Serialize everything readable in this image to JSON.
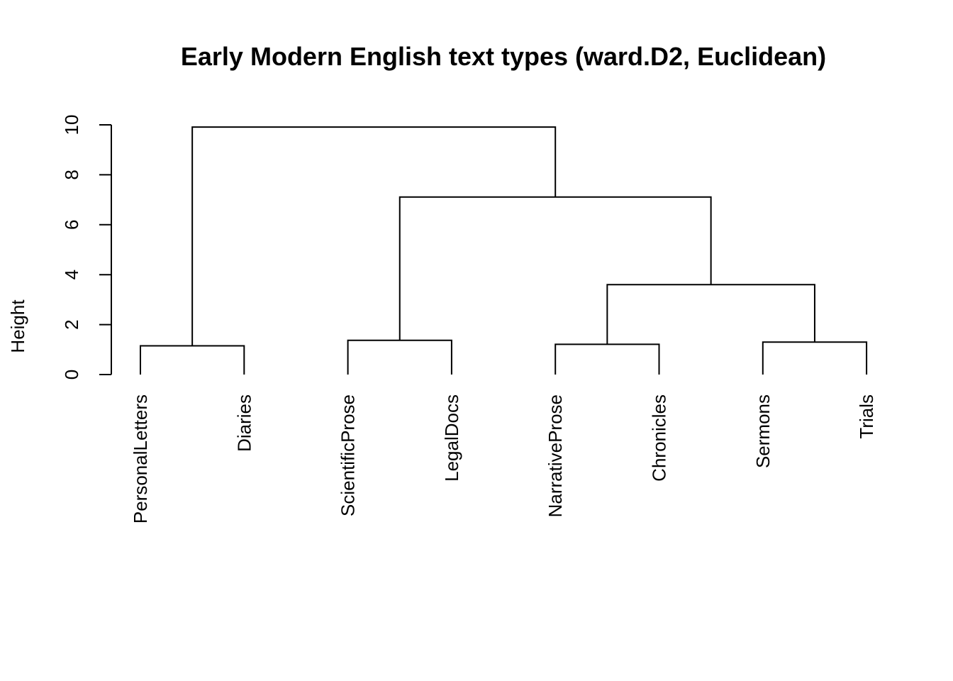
{
  "chart_data": {
    "type": "dendrogram",
    "title": "Early Modern English text types (ward.D2, Euclidean)",
    "ylabel": "Height",
    "xlabel": "",
    "ylim": [
      0,
      10
    ],
    "yticks": [
      "0",
      "2",
      "4",
      "6",
      "8",
      "10"
    ],
    "leaves": [
      "PersonalLetters",
      "Diaries",
      "ScientificProse",
      "LegalDocs",
      "NarrativeProse",
      "Chronicles",
      "Sermons",
      "Trials"
    ],
    "merges": [
      {
        "left": "PersonalLetters",
        "right": "Diaries",
        "height": 1.15
      },
      {
        "left": "ScientificProse",
        "right": "LegalDocs",
        "height": 1.37
      },
      {
        "left": "NarrativeProse",
        "right": "Chronicles",
        "height": 1.21
      },
      {
        "left": "Sermons",
        "right": "Trials",
        "height": 1.3
      },
      {
        "left": "NarrativeProse+Chronicles",
        "right": "Sermons+Trials",
        "height": 3.6
      },
      {
        "left": "ScientificProse+LegalDocs",
        "right": "NarrativeProse+Chronicles+Sermons+Trials",
        "height": 7.11
      },
      {
        "left": "PersonalLetters+Diaries",
        "right": "ScientificProse+LegalDocs+NarrativeProse+Chronicles+Sermons+Trials",
        "height": 9.91
      }
    ],
    "grid": false,
    "line_color": "#000000"
  }
}
